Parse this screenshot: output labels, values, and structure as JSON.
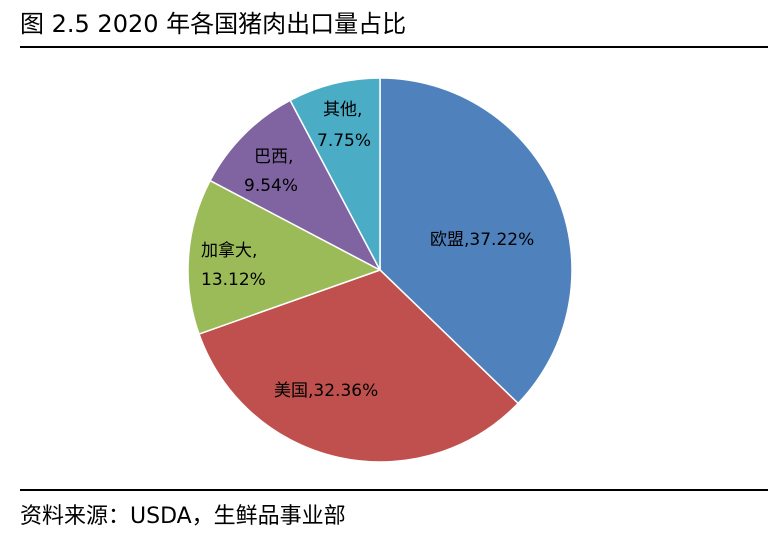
{
  "header": {
    "figure_title": "图 2.5 2020 年各国猪肉出口量占比"
  },
  "footer": {
    "source": "资料来源：USDA，生鲜品事业部"
  },
  "chart_data": {
    "type": "pie",
    "title": "",
    "start_angle_deg": 0,
    "direction": "clockwise",
    "legend": "none",
    "slices": [
      {
        "name": "欧盟",
        "value": 37.22,
        "label": "37.22%",
        "color": "#4f81bd"
      },
      {
        "name": "美国",
        "value": 32.36,
        "label": "32.36%",
        "color": "#c0504d"
      },
      {
        "name": "加拿大",
        "value": 13.12,
        "label": "13.12%",
        "color": "#9bbb59"
      },
      {
        "name": "巴西",
        "value": 9.54,
        "label": "9.54%",
        "color": "#8064a2"
      },
      {
        "name": "其他",
        "value": 7.75,
        "label": "7.75%",
        "color": "#4bacc6"
      }
    ]
  }
}
